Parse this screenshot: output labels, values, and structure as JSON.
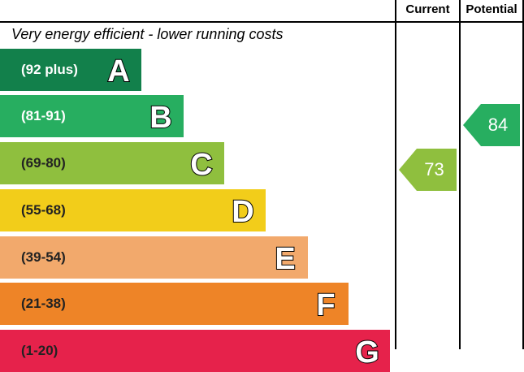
{
  "header": {
    "current_label": "Current",
    "potential_label": "Potential"
  },
  "top_caption": "Very energy efficient - lower running costs",
  "bands": [
    {
      "letter": "A",
      "range": "(92 plus)",
      "color": "#12804b",
      "text_color": "#ffffff"
    },
    {
      "letter": "B",
      "range": "(81-91)",
      "color": "#27ae60",
      "text_color": "#ffffff"
    },
    {
      "letter": "C",
      "range": "(69-80)",
      "color": "#8fbf3e",
      "text_color": "#222222"
    },
    {
      "letter": "D",
      "range": "(55-68)",
      "color": "#f2cd1a",
      "text_color": "#222222"
    },
    {
      "letter": "E",
      "range": "(39-54)",
      "color": "#f2a96c",
      "text_color": "#222222"
    },
    {
      "letter": "F",
      "range": "(21-38)",
      "color": "#ee8427",
      "text_color": "#222222"
    },
    {
      "letter": "G",
      "range": "(1-20)",
      "color": "#e6224b",
      "text_color": "#222222"
    }
  ],
  "current": {
    "value": "73",
    "band": "C",
    "color": "#8fbf3e"
  },
  "potential": {
    "value": "84",
    "band": "B",
    "color": "#27ae60"
  }
}
